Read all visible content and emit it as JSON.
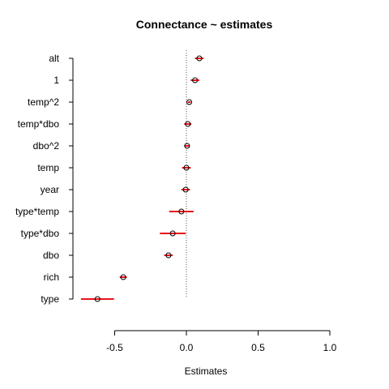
{
  "chart_data": {
    "type": "scatter",
    "title": "Connectance ~ estimates",
    "xlabel": "Estimates",
    "ylabel": "",
    "xlim": [
      -0.75,
      1.0
    ],
    "x_ticks": [
      -0.5,
      0.0,
      0.5,
      1.0
    ],
    "x_tick_labels": [
      "-0.5",
      "0.0",
      "0.5",
      "1.0"
    ],
    "reference_line": 0,
    "grid": false,
    "categories": [
      "alt",
      "1",
      "temp^2",
      "temp*dbo",
      "dbo^2",
      "temp",
      "year",
      "type*temp",
      "type*dbo",
      "dbo",
      "rich",
      "type"
    ],
    "estimates": [
      0.09,
      0.06,
      0.02,
      0.01,
      0.005,
      0.0,
      -0.005,
      -0.035,
      -0.095,
      -0.125,
      -0.44,
      -0.62
    ],
    "lower": [
      0.06,
      0.03,
      0.01,
      -0.015,
      -0.015,
      -0.03,
      -0.035,
      -0.12,
      -0.185,
      -0.155,
      -0.465,
      -0.735
    ],
    "upper": [
      0.12,
      0.09,
      0.03,
      0.035,
      0.02,
      0.03,
      0.025,
      0.05,
      -0.005,
      -0.095,
      -0.415,
      -0.505
    ],
    "colors": {
      "interval": "#e8141a",
      "point": "#000000",
      "reference": "#555555"
    }
  }
}
